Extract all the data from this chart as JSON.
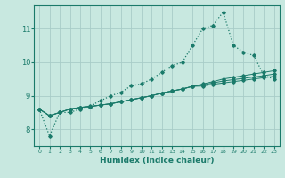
{
  "title": "",
  "xlabel": "Humidex (Indice chaleur)",
  "background_color": "#c8e8e0",
  "grid_color": "#a8ccc8",
  "line_color": "#1a7a6a",
  "x": [
    0,
    1,
    2,
    3,
    4,
    5,
    6,
    7,
    8,
    9,
    10,
    11,
    12,
    13,
    14,
    15,
    16,
    17,
    18,
    19,
    20,
    21,
    22,
    23
  ],
  "main_y": [
    8.6,
    7.8,
    8.5,
    8.5,
    8.6,
    8.7,
    8.85,
    9.0,
    9.1,
    9.3,
    9.35,
    9.5,
    9.7,
    9.9,
    10.0,
    10.5,
    11.0,
    11.1,
    11.5,
    10.5,
    10.3,
    10.2,
    9.6,
    9.5
  ],
  "line2": [
    8.6,
    8.4,
    8.5,
    8.6,
    8.65,
    8.68,
    8.72,
    8.76,
    8.82,
    8.88,
    8.94,
    9.0,
    9.08,
    9.14,
    9.2,
    9.28,
    9.35,
    9.42,
    9.5,
    9.55,
    9.6,
    9.65,
    9.7,
    9.75
  ],
  "line3": [
    8.6,
    8.4,
    8.5,
    8.6,
    8.65,
    8.68,
    8.72,
    8.76,
    8.82,
    8.88,
    8.94,
    9.0,
    9.08,
    9.14,
    9.2,
    9.28,
    9.32,
    9.38,
    9.44,
    9.48,
    9.52,
    9.56,
    9.6,
    9.65
  ],
  "line4": [
    8.6,
    8.4,
    8.5,
    8.6,
    8.65,
    8.68,
    8.72,
    8.76,
    8.82,
    8.88,
    8.94,
    9.0,
    9.08,
    9.14,
    9.2,
    9.28,
    9.29,
    9.34,
    9.38,
    9.42,
    9.46,
    9.5,
    9.54,
    9.58
  ],
  "ylim": [
    7.5,
    11.7
  ],
  "yticks": [
    8,
    9,
    10,
    11
  ],
  "xticks": [
    0,
    1,
    2,
    3,
    4,
    5,
    6,
    7,
    8,
    9,
    10,
    11,
    12,
    13,
    14,
    15,
    16,
    17,
    18,
    19,
    20,
    21,
    22,
    23
  ]
}
